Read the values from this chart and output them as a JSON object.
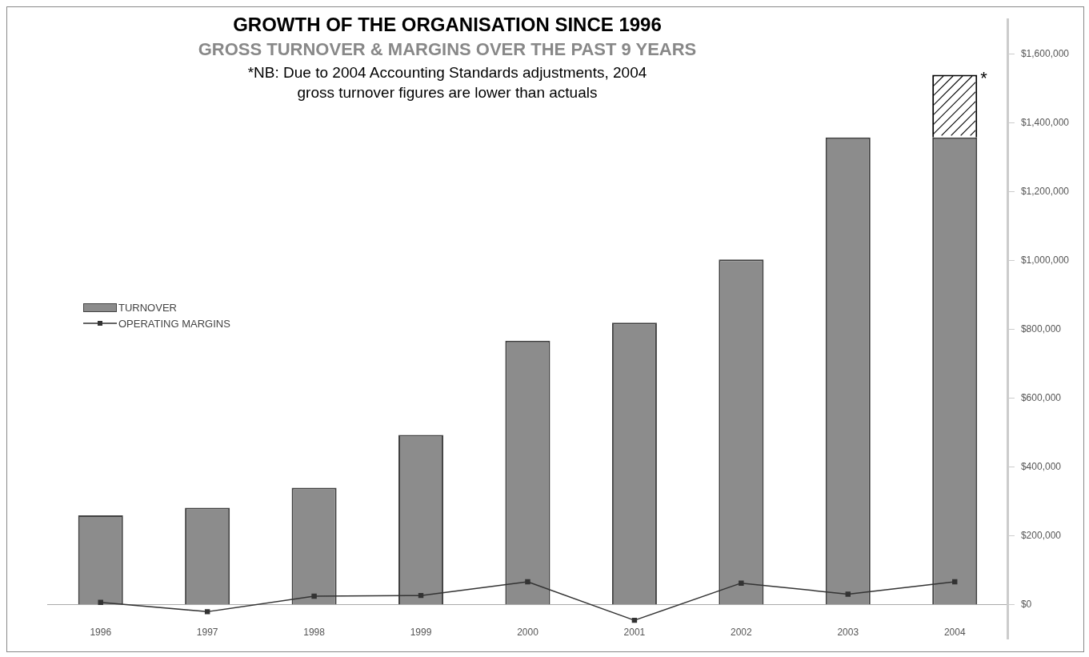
{
  "chart_data": {
    "type": "bar",
    "title": "GROWTH OF THE ORGANISATION SINCE 1996",
    "subtitle": "GROSS TURNOVER & MARGINS OVER THE PAST 9 YEARS",
    "annotations": [
      "*NB: Due to 2004 Accounting Standards adjustments, 2004 gross turnover figures are lower than actuals",
      {
        "text": "*",
        "x": "2004",
        "y": 1540000
      }
    ],
    "categories": [
      "1996",
      "1997",
      "1998",
      "1999",
      "2000",
      "2001",
      "2002",
      "2003",
      "2004"
    ],
    "stacked": true,
    "series": [
      {
        "name": "TURNOVER",
        "color": "#8c8c8c",
        "values": [
          260000,
          282000,
          340000,
          493000,
          767000,
          819000,
          1003000,
          1357000,
          1357000
        ]
      },
      {
        "color": "#ffffff",
        "values": [
          null,
          null,
          null,
          null,
          null,
          null,
          null,
          null,
          182000
        ]
      },
      {
        "name": "OPERATING MARGINS",
        "type": "line",
        "color": "#333333",
        "values": [
          7000,
          -20000,
          25000,
          27000,
          67000,
          -45000,
          63000,
          31000,
          67000
        ]
      }
    ],
    "ylim": [
      -100000,
      1700000
    ],
    "yticks": [
      {
        "value": 0,
        "label": "$0"
      },
      {
        "value": 200000,
        "label": "$200,000"
      },
      {
        "value": 400000,
        "label": "$400,000"
      },
      {
        "value": 600000,
        "label": "$600,000"
      },
      {
        "value": 800000,
        "label": "$800,000"
      },
      {
        "value": 1000000,
        "label": "$1,000,000"
      },
      {
        "value": 1200000,
        "label": "$1,200,000"
      },
      {
        "value": 1400000,
        "label": "$1,400,000"
      },
      {
        "value": 1600000,
        "label": "$1,600,000"
      }
    ],
    "legend": "left",
    "marker": "square"
  }
}
